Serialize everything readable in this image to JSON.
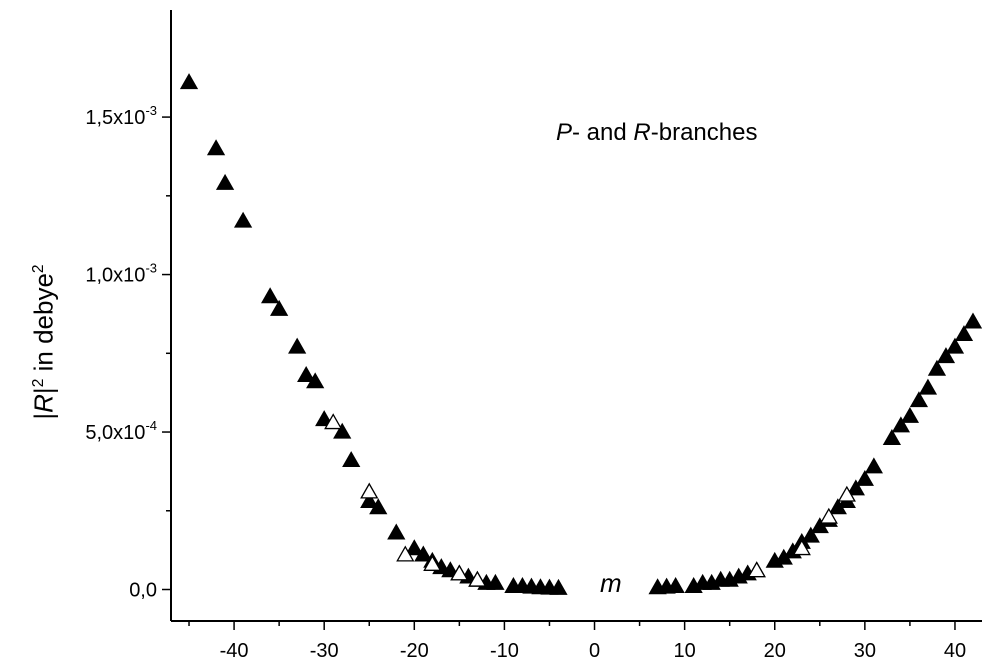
{
  "chart_data": {
    "type": "scatter",
    "title": "",
    "annotation": {
      "p": "P",
      "mid": "- and ",
      "r": "R",
      "tail": "-branches"
    },
    "ylabel": {
      "bar1": "|",
      "r": "R",
      "bar2": "|",
      "sup1": "2",
      "mid": " in debye",
      "sup2": "2"
    },
    "xlabel": "m",
    "xlim": [
      -47,
      43
    ],
    "ylim": [
      -0.0001,
      0.00184
    ],
    "xticks": [
      -40,
      -30,
      -20,
      -10,
      0,
      10,
      20,
      30,
      40
    ],
    "xtick_labels": [
      "-40",
      "-30",
      "-20",
      "-10",
      "0",
      "10",
      "20",
      "30",
      "40"
    ],
    "yticks": [
      0,
      0.0005,
      0.001,
      0.0015
    ],
    "ytick_labels": [
      {
        "base": "0,0",
        "exp": ""
      },
      {
        "base": "5,0x10",
        "exp": "-4"
      },
      {
        "base": "1,0x10",
        "exp": "-3"
      },
      {
        "base": "1,5x10",
        "exp": "-3"
      }
    ],
    "grid": false,
    "series": [
      {
        "marker": "filled-triangle",
        "color": "#000000",
        "x": [
          -45,
          -42,
          -41,
          -39,
          -36,
          -35,
          -33,
          -32,
          -31,
          -30,
          -28,
          -27,
          -25,
          -24,
          -22,
          -20,
          -19,
          -18,
          -17,
          -16,
          -15,
          -14,
          -13,
          -12,
          -11,
          -9,
          -8,
          -7,
          -6,
          -5,
          -4,
          7,
          8,
          9,
          11,
          12,
          13,
          14,
          15,
          16,
          17,
          18,
          20,
          21,
          22,
          23,
          24,
          25,
          26,
          27,
          28,
          29,
          30,
          31,
          33,
          34,
          35,
          36,
          37,
          38,
          39,
          40,
          41,
          42
        ],
        "y": [
          0.00161,
          0.0014,
          0.00129,
          0.00117,
          0.00093,
          0.00089,
          0.00077,
          0.00068,
          0.00066,
          0.00054,
          0.0005,
          0.00041,
          0.00028,
          0.00026,
          0.00018,
          0.00013,
          0.00011,
          9e-05,
          7e-05,
          6e-05,
          5e-05,
          4e-05,
          3e-05,
          2e-05,
          2e-05,
          1e-05,
          1e-05,
          8e-06,
          6e-06,
          5e-06,
          4e-06,
          6e-06,
          8e-06,
          1e-05,
          1e-05,
          2e-05,
          2e-05,
          3e-05,
          3e-05,
          4e-05,
          5e-05,
          6e-05,
          9e-05,
          0.0001,
          0.00012,
          0.00015,
          0.00017,
          0.0002,
          0.00022,
          0.00026,
          0.00028,
          0.00032,
          0.00035,
          0.00039,
          0.00048,
          0.00052,
          0.00055,
          0.0006,
          0.00064,
          0.0007,
          0.00074,
          0.00077,
          0.00081,
          0.00085
        ]
      },
      {
        "marker": "open-triangle",
        "color": "#000000",
        "x": [
          -29,
          -25,
          -21,
          -18,
          -15,
          -13,
          18,
          23,
          26,
          28
        ],
        "y": [
          0.00053,
          0.00031,
          0.00011,
          8e-05,
          5e-05,
          3e-05,
          6e-05,
          0.00013,
          0.00023,
          0.0003
        ]
      }
    ]
  }
}
